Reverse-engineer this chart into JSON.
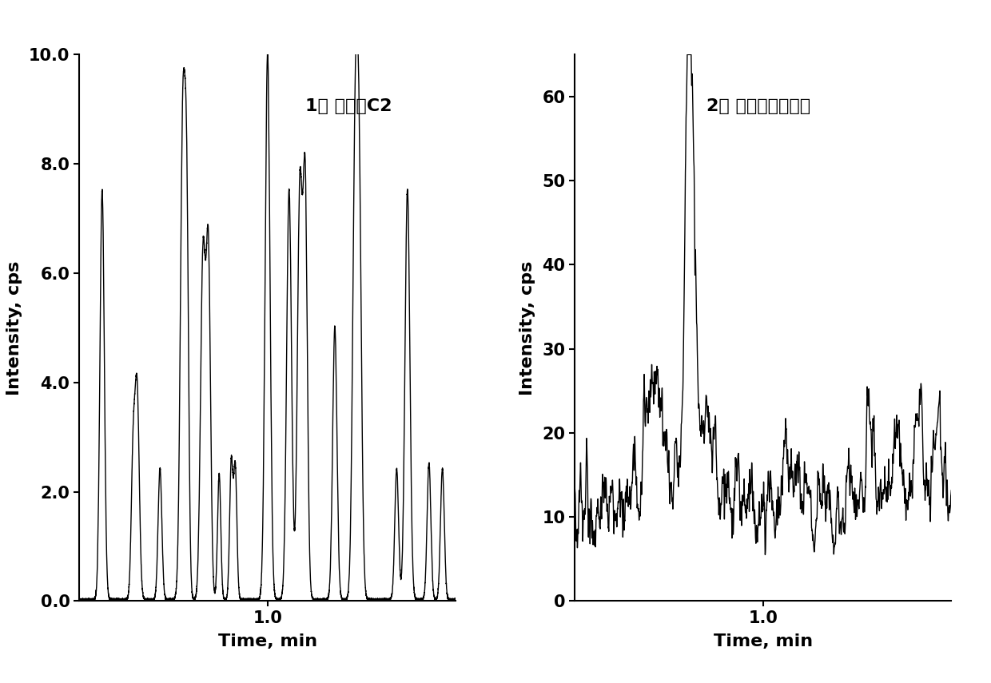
{
  "panel1_label": "1： 甘草苷C2",
  "panel2_label": "2： 柚皮素（内标）",
  "xlabel": "Time, min",
  "ylabel": "Intensity, cps",
  "panel1_ylim": [
    0.0,
    10.0
  ],
  "panel1_yticks": [
    0.0,
    2.0,
    4.0,
    6.0,
    8.0,
    10.0
  ],
  "panel2_ylim": [
    0,
    65
  ],
  "panel2_yticks": [
    0,
    10,
    20,
    30,
    40,
    50,
    60
  ],
  "xlim": [
    0.3,
    1.7
  ],
  "xtick_label": "1.0",
  "line_color": "#000000",
  "bg_color": "#ffffff",
  "line_width": 1.0
}
